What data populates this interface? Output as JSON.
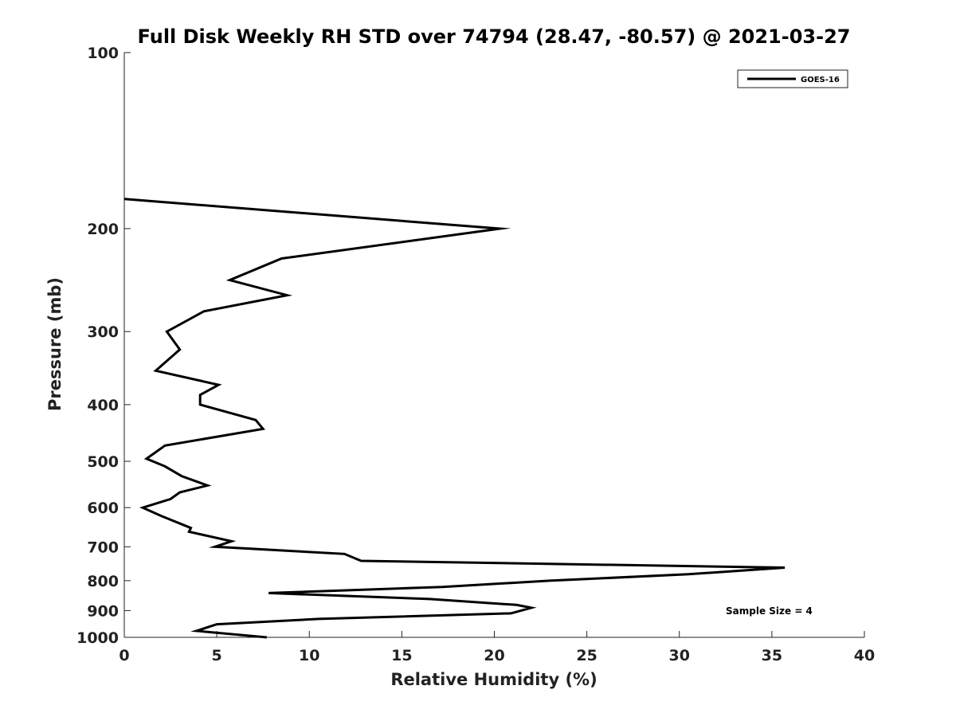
{
  "chart_data": {
    "type": "line",
    "title": "Full Disk Weekly RH STD over 74794 (28.47, -80.57) @ 2021-03-27",
    "xlabel": "Relative Humidity (%)",
    "ylabel": "Pressure (mb)",
    "xlim": [
      0,
      40
    ],
    "ylim": [
      100,
      1000
    ],
    "y_scale": "log",
    "y_reversed": true,
    "x_ticks": [
      0,
      5,
      10,
      15,
      20,
      25,
      30,
      35,
      40
    ],
    "y_ticks": [
      100,
      200,
      300,
      400,
      500,
      600,
      700,
      800,
      900,
      1000
    ],
    "legend": {
      "position": "top-right",
      "entries": [
        "GOES-16"
      ]
    },
    "annotation": "Sample Size = 4",
    "series": [
      {
        "name": "GOES-16",
        "color": "#000000",
        "points": [
          [
            0.0,
            178
          ],
          [
            20.3,
            200
          ],
          [
            8.5,
            225
          ],
          [
            5.7,
            245
          ],
          [
            8.8,
            260
          ],
          [
            4.3,
            277
          ],
          [
            2.3,
            300
          ],
          [
            3.0,
            322
          ],
          [
            1.7,
            350
          ],
          [
            5.1,
            370
          ],
          [
            4.1,
            385
          ],
          [
            4.1,
            400
          ],
          [
            7.1,
            425
          ],
          [
            7.5,
            440
          ],
          [
            2.2,
            470
          ],
          [
            1.2,
            495
          ],
          [
            2.2,
            510
          ],
          [
            3.1,
            530
          ],
          [
            4.5,
            550
          ],
          [
            3.0,
            565
          ],
          [
            2.5,
            580
          ],
          [
            1.0,
            600
          ],
          [
            2.0,
            620
          ],
          [
            3.6,
            650
          ],
          [
            3.5,
            660
          ],
          [
            5.8,
            685
          ],
          [
            4.9,
            700
          ],
          [
            11.9,
            720
          ],
          [
            12.8,
            740
          ],
          [
            35.7,
            760
          ],
          [
            30.5,
            780
          ],
          [
            23.0,
            800
          ],
          [
            17.2,
            820
          ],
          [
            7.8,
            840
          ],
          [
            16.5,
            860
          ],
          [
            21.2,
            880
          ],
          [
            22.0,
            890
          ],
          [
            20.9,
            910
          ],
          [
            10.5,
            930
          ],
          [
            5.0,
            950
          ],
          [
            3.9,
            975
          ],
          [
            7.7,
            1000
          ]
        ]
      }
    ]
  }
}
